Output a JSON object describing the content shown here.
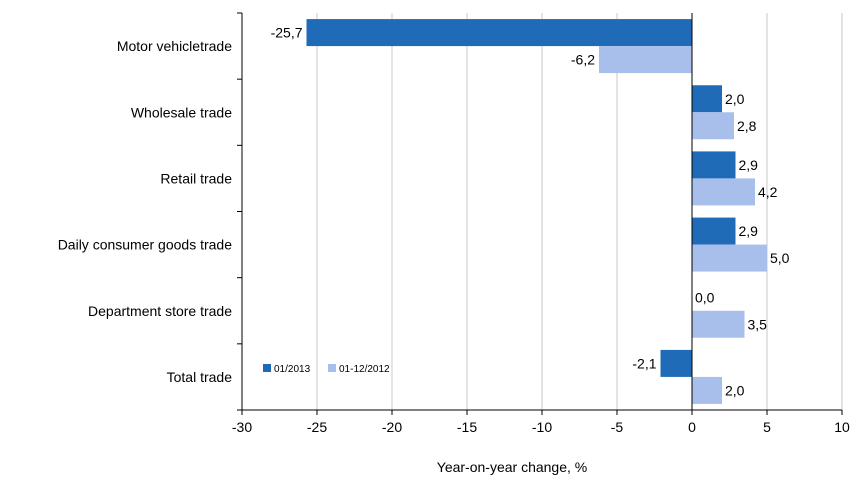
{
  "chart_data": {
    "type": "bar",
    "orientation": "horizontal",
    "categories": [
      "Motor vehicletrade",
      "Wholesale trade",
      "Retail trade",
      "Daily consumer goods trade",
      "Department store trade",
      "Total trade"
    ],
    "series": [
      {
        "name": "01/2013",
        "values": [
          -25.7,
          2.0,
          2.9,
          2.9,
          0.0,
          -2.1
        ],
        "labels": [
          "-25,7",
          "2,0",
          "2,9",
          "2,9",
          "0,0",
          "-2,1"
        ],
        "color": "#1f6bb7"
      },
      {
        "name": "01-12/2012",
        "values": [
          -6.2,
          2.8,
          4.2,
          5.0,
          3.5,
          2.0
        ],
        "labels": [
          "-6,2",
          "2,8",
          "4,2",
          "5,0",
          "3,5",
          "2,0"
        ],
        "color": "#a9bfeb"
      }
    ],
    "xlabel": "Year-on-year change, %",
    "xlim": [
      -30,
      10
    ],
    "xticks": [
      -30,
      -25,
      -20,
      -15,
      -10,
      -5,
      0,
      5,
      10
    ],
    "grid": true,
    "legend_position": "bottom-left inside plot"
  }
}
